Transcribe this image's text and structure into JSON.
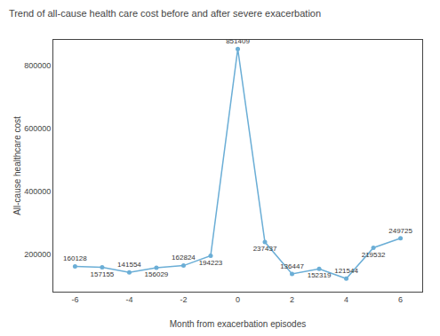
{
  "chart_data": {
    "type": "line",
    "title": "Trend of all-cause health care cost before and after severe exacerbation",
    "x_label": "Month from exacerbation episodes",
    "y_label": "All-cause healthcare cost",
    "x": [
      -6,
      -5,
      -4,
      -3,
      -2,
      -1,
      0,
      1,
      2,
      3,
      4,
      5,
      6
    ],
    "values": [
      160128,
      157155,
      141554,
      156029,
      162824,
      194223,
      851409,
      237437,
      136447,
      152319,
      121544,
      219532,
      249725
    ],
    "data_labels": true,
    "color": "#6baed6",
    "marker": "circle",
    "grid": false,
    "xlim": [
      -6.8,
      6.8
    ],
    "ylim": [
      80000,
      880000
    ],
    "xticks": [
      -6,
      -4,
      -2,
      0,
      2,
      4,
      6
    ],
    "yticks": [
      200000,
      400000,
      600000,
      800000
    ]
  }
}
